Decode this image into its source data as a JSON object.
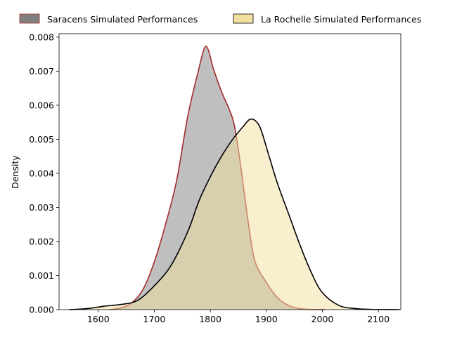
{
  "chart_data": {
    "type": "area",
    "xlabel": "",
    "ylabel": "Density",
    "xlim": [
      1530,
      2140
    ],
    "ylim": [
      0,
      0.0081
    ],
    "xticks": [
      1600,
      1700,
      1800,
      1900,
      2000,
      2100
    ],
    "yticks": [
      "0.000",
      "0.001",
      "0.002",
      "0.003",
      "0.004",
      "0.005",
      "0.006",
      "0.007",
      "0.008"
    ],
    "grid": false,
    "legend_position": "top",
    "series": [
      {
        "name": "Saracens Simulated Performances",
        "fill": "#808080",
        "fill_opacity": 0.5,
        "stroke": "#a52a2a",
        "x": [
          1620,
          1640,
          1660,
          1680,
          1700,
          1720,
          1740,
          1760,
          1780,
          1790,
          1797,
          1805,
          1820,
          1840,
          1850,
          1860,
          1870,
          1880,
          1900,
          1920,
          1940,
          1960,
          1980,
          2005
        ],
        "y": [
          0.0,
          5e-05,
          0.0002,
          0.0006,
          0.0014,
          0.0025,
          0.0038,
          0.0057,
          0.0071,
          0.0077,
          0.0076,
          0.0071,
          0.0064,
          0.0056,
          0.0047,
          0.0035,
          0.0023,
          0.0014,
          0.0008,
          0.00035,
          0.00012,
          3e-05,
          5e-06,
          0.0
        ]
      },
      {
        "name": "La Rochelle Simulated Performances",
        "fill": "#f1e0a0",
        "fill_opacity": 0.5,
        "stroke": "#000000",
        "x": [
          1548,
          1580,
          1610,
          1640,
          1670,
          1700,
          1730,
          1760,
          1780,
          1800,
          1820,
          1840,
          1860,
          1870,
          1880,
          1890,
          1905,
          1920,
          1940,
          1960,
          1980,
          2000,
          2030,
          2060,
          2090,
          2138
        ],
        "y": [
          0.0,
          3e-05,
          0.0001,
          0.00015,
          0.00027,
          0.0007,
          0.0013,
          0.0023,
          0.0032,
          0.0039,
          0.0045,
          0.005,
          0.0054,
          0.00558,
          0.00555,
          0.0053,
          0.0045,
          0.0037,
          0.0028,
          0.0019,
          0.0011,
          0.0005,
          0.00012,
          3e-05,
          5e-06,
          0.0
        ]
      }
    ]
  }
}
